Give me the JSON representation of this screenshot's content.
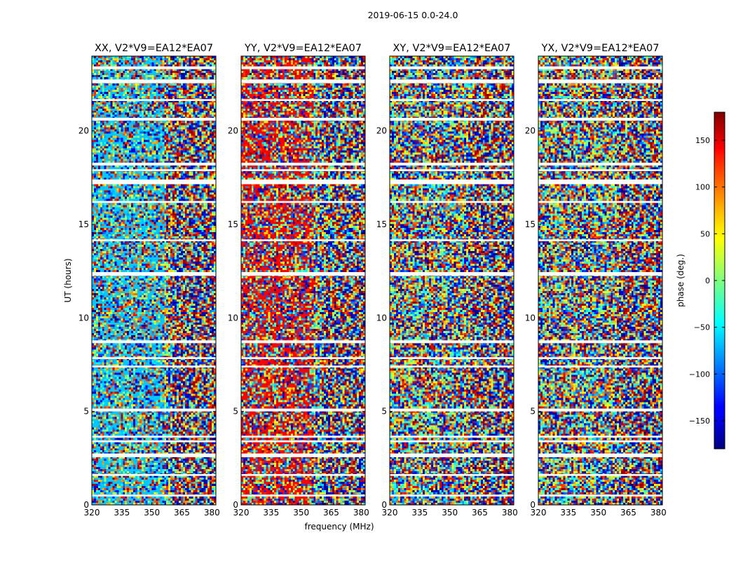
{
  "figure": {
    "suptitle": "2019-06-15 0.0-24.0"
  },
  "chart_data": {
    "type": "heatmap",
    "title": "2019-06-15 0.0-24.0",
    "xlabel": "frequency (MHz)",
    "ylabel": "UT (hours)",
    "xlim": [
      320,
      382
    ],
    "ylim": [
      0,
      24
    ],
    "xticks": [
      320,
      335,
      350,
      365,
      380
    ],
    "yticks": [
      0,
      5,
      10,
      15,
      20
    ],
    "panels": [
      {
        "title": "XX, V2*V9=EA12*EA07",
        "band_base_color": "#00aaff"
      },
      {
        "title": "YY, V2*V9=EA12*EA07",
        "band_base_color": "#ee2200"
      },
      {
        "title": "XY, V2*V9=EA12*EA07",
        "band_base_color": "#44cc88"
      },
      {
        "title": "YX, V2*V9=EA12*EA07",
        "band_base_color": "#44cc88"
      }
    ],
    "gap_bands_ut": [
      [
        23.3,
        23.45
      ],
      [
        22.55,
        22.75
      ],
      [
        21.6,
        21.7
      ],
      [
        20.55,
        20.7
      ],
      [
        18.15,
        18.3
      ],
      [
        17.85,
        17.95
      ],
      [
        17.15,
        17.4
      ],
      [
        16.15,
        16.25
      ],
      [
        14.1,
        14.2
      ],
      [
        12.25,
        12.45
      ],
      [
        8.65,
        8.8
      ],
      [
        7.8,
        7.9
      ],
      [
        7.35,
        7.45
      ],
      [
        5.0,
        5.15
      ],
      [
        3.6,
        3.7
      ],
      [
        3.35,
        3.45
      ],
      [
        2.55,
        2.75
      ],
      [
        1.55,
        1.65
      ],
      [
        0.45,
        0.55
      ]
    ],
    "colorbar": {
      "label": "phase (deg.)",
      "range": [
        -180,
        180
      ],
      "ticks": [
        150,
        100,
        50,
        0,
        -50,
        -100,
        -150
      ],
      "tick_labels": [
        "150",
        "100",
        "50",
        "0",
        "−50",
        "−100",
        "−150"
      ],
      "colormap": "jet"
    }
  }
}
